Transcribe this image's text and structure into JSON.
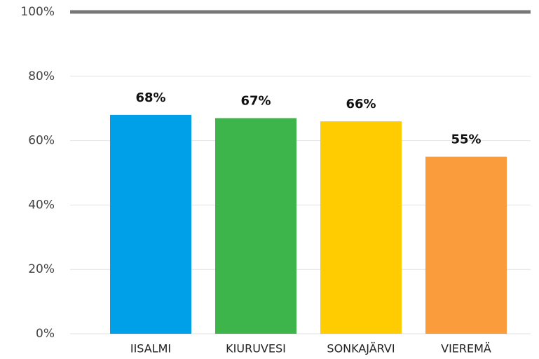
{
  "chart_data": {
    "type": "bar",
    "categories": [
      "IISALMI",
      "KIURUVESI",
      "SONKAJÄRVI",
      "VIEREMÄ"
    ],
    "values": [
      68,
      67,
      66,
      55
    ],
    "value_labels": [
      "68%",
      "67%",
      "66%",
      "55%"
    ],
    "colors": [
      "#00a0e9",
      "#3db54a",
      "#fecc00",
      "#fa9b3c"
    ],
    "ylim": [
      0,
      100
    ],
    "yticks": [
      {
        "value": 0,
        "label": "0%"
      },
      {
        "value": 20,
        "label": "20%"
      },
      {
        "value": 40,
        "label": "40%"
      },
      {
        "value": 60,
        "label": "60%"
      },
      {
        "value": 80,
        "label": "80%"
      },
      {
        "value": 100,
        "label": "100%"
      }
    ],
    "grid": true
  }
}
